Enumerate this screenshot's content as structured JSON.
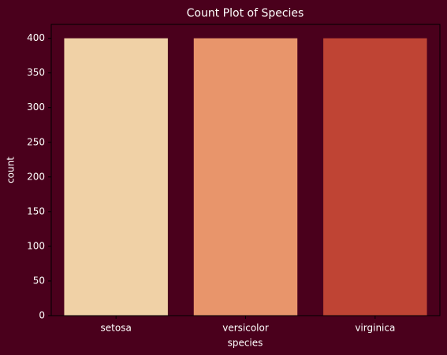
{
  "chart_data": {
    "type": "bar",
    "title": "Count Plot of Species",
    "x_label": "species",
    "y_label": "count",
    "categories": [
      "setosa",
      "versicolor",
      "virginica"
    ],
    "values": [
      400,
      400,
      400
    ],
    "colors": [
      "#f0d1a6",
      "#e8956b",
      "#bf4434"
    ],
    "ylim": [
      0,
      420
    ],
    "yticks": [
      0,
      50,
      100,
      150,
      200,
      250,
      300,
      350,
      400
    ],
    "grid": false
  }
}
